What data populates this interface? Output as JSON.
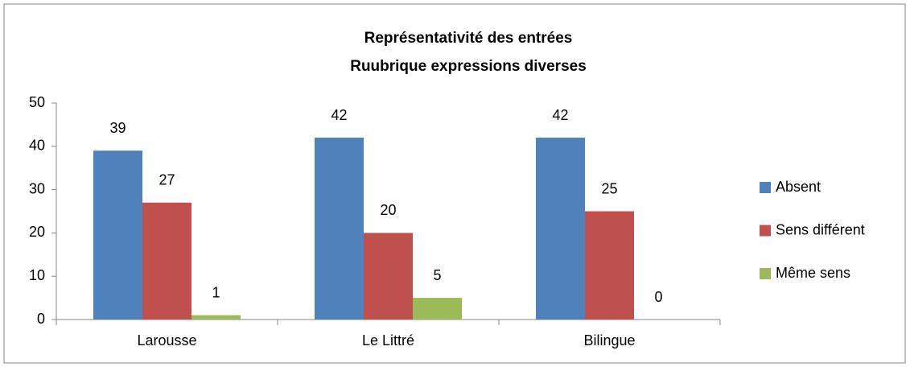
{
  "chart_data": {
    "type": "bar",
    "title": [
      "Représentativité des entrées",
      "Ruubrique expressions diverses"
    ],
    "categories": [
      "Larousse",
      "Le Littré",
      "Bilingue"
    ],
    "series": [
      {
        "name": "Absent",
        "color": "#4f81bd",
        "values": [
          39,
          42,
          42
        ]
      },
      {
        "name": "Sens différent",
        "color": "#c0504d",
        "values": [
          27,
          20,
          25
        ]
      },
      {
        "name": "Même sens",
        "color": "#9bbb59",
        "values": [
          1,
          5,
          0
        ]
      }
    ],
    "ylim": [
      0,
      50
    ],
    "yticks": [
      0,
      10,
      20,
      30,
      40,
      50
    ],
    "grid": false,
    "legend": "right"
  }
}
